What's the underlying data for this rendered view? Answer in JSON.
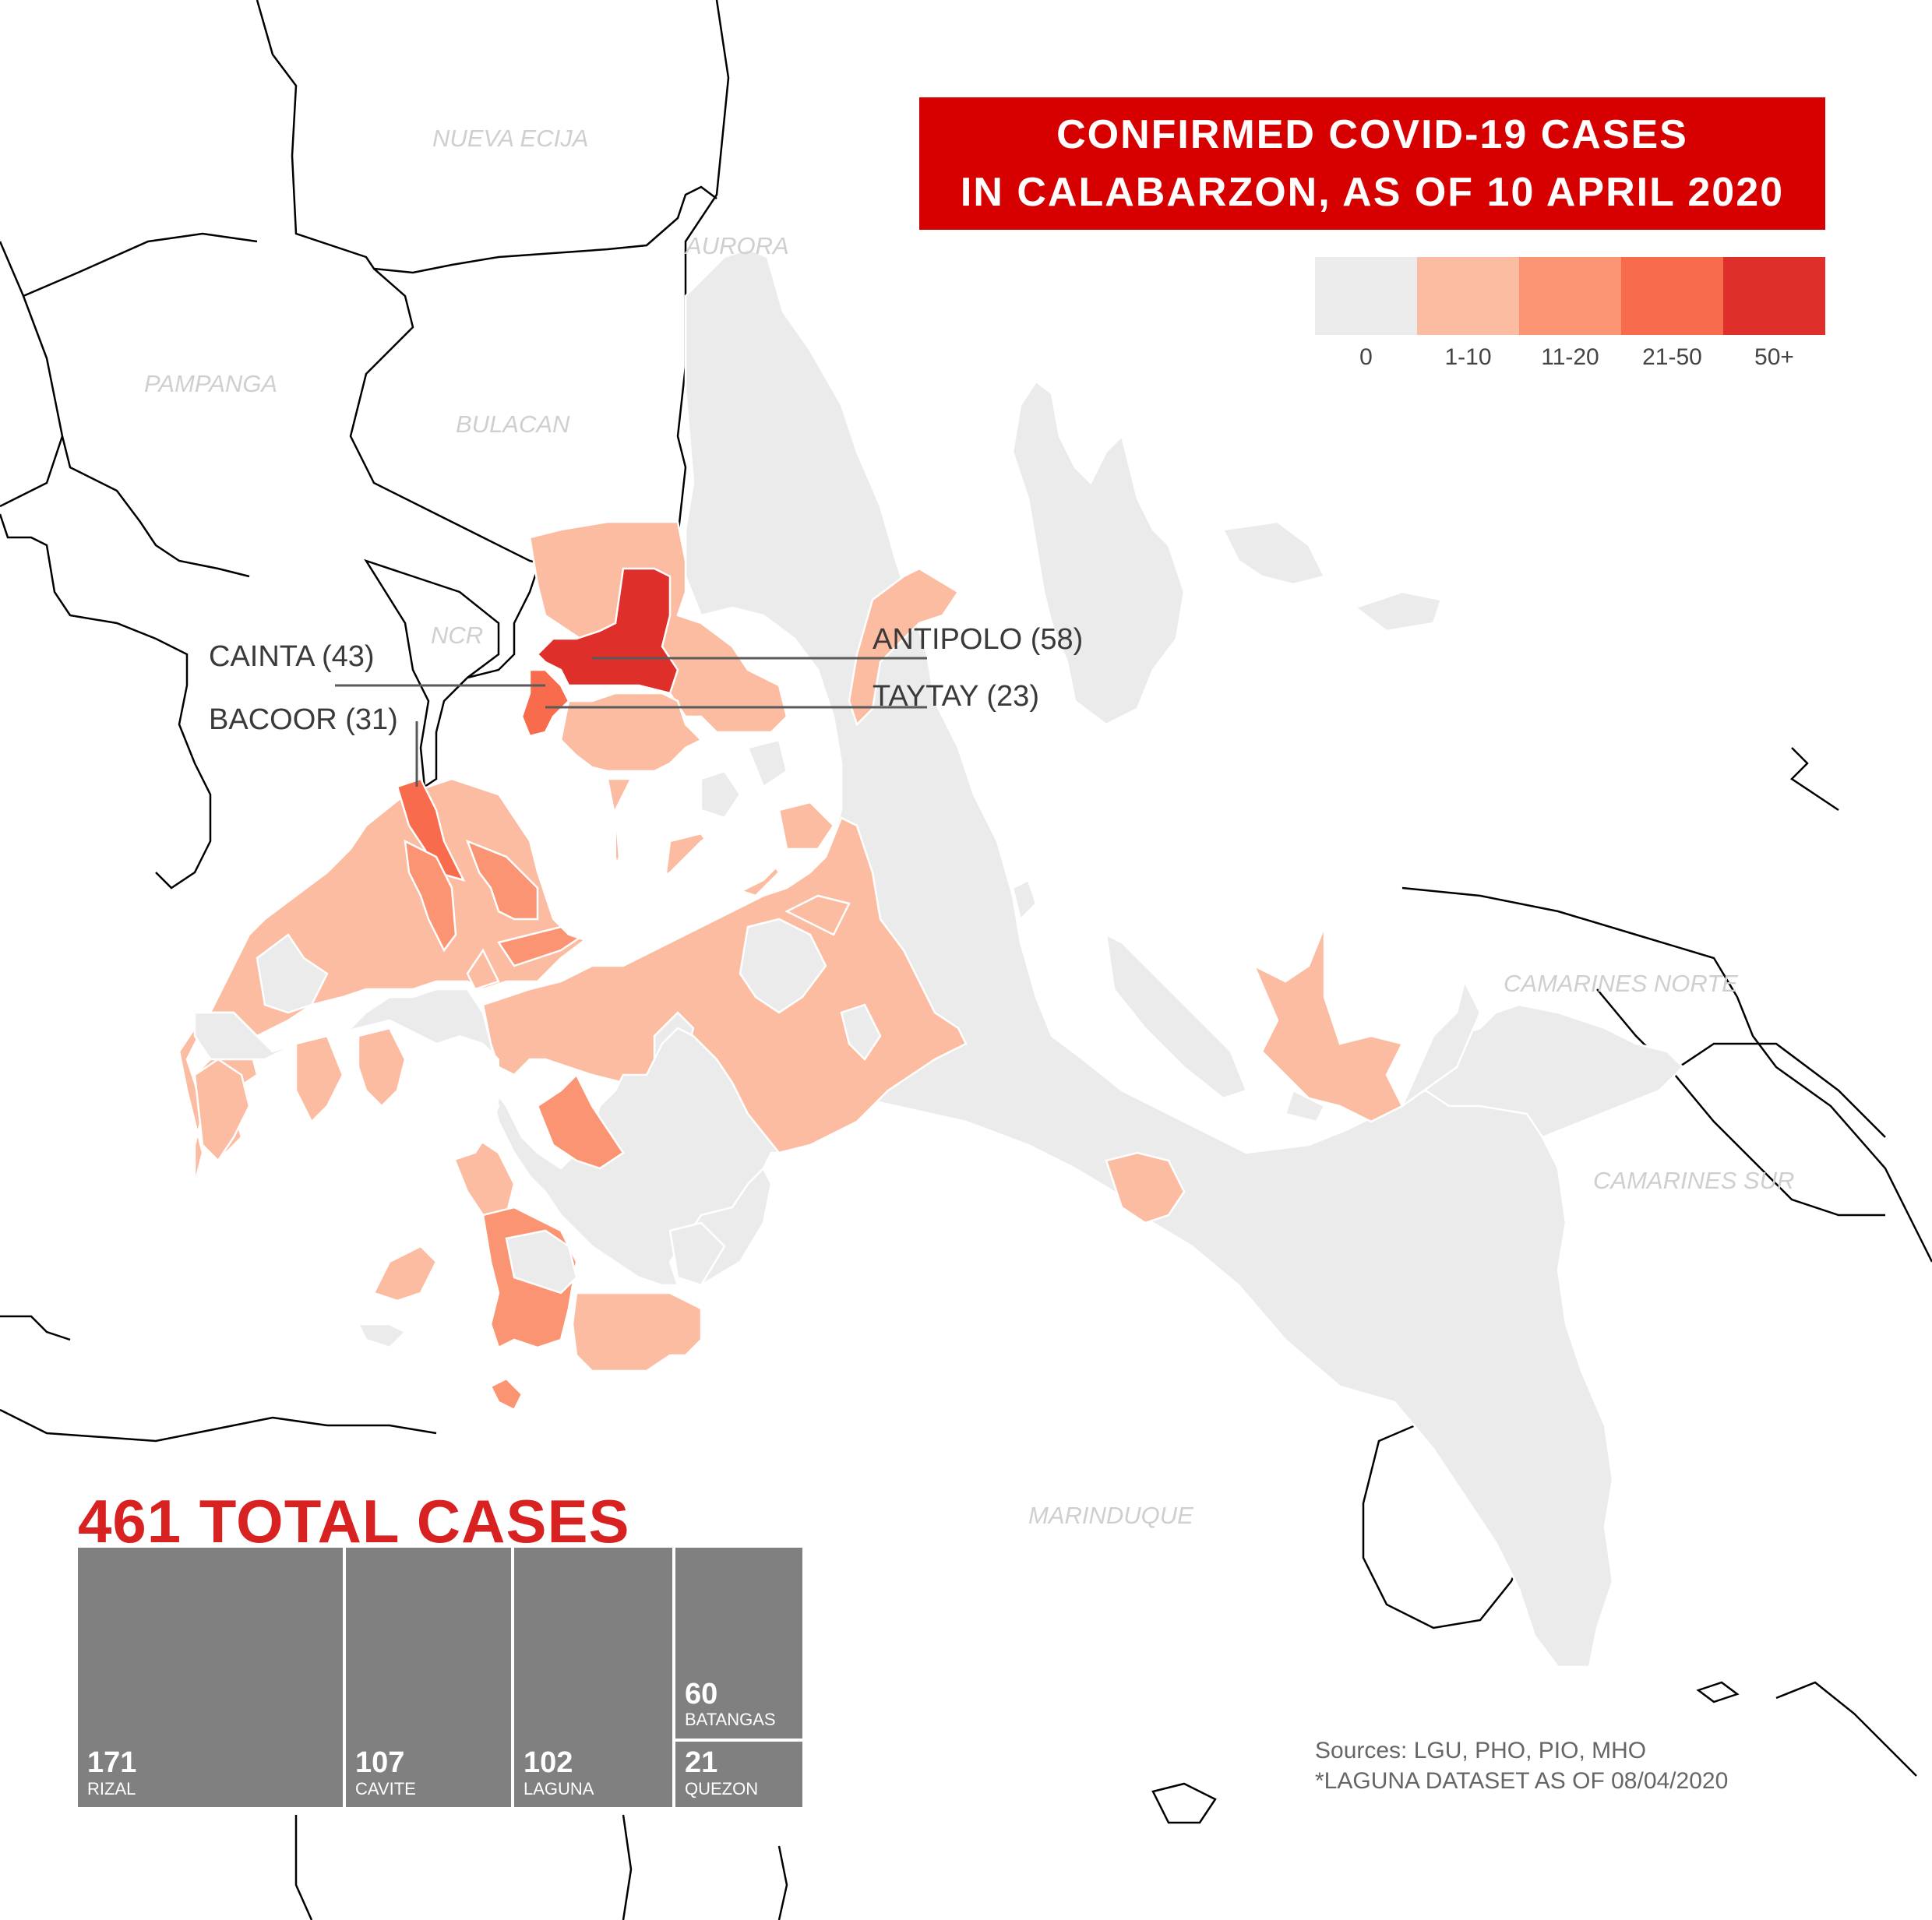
{
  "title": {
    "line1": "CONFIRMED COVID-19 CASES",
    "line2": "IN CALABARZON, AS OF 10 APRIL 2020"
  },
  "legend": [
    {
      "label": "0",
      "color": "#ebebeb"
    },
    {
      "label": "1-10",
      "color": "#fbbca1"
    },
    {
      "label": "11-20",
      "color": "#fb9473"
    },
    {
      "label": "21-50",
      "color": "#f86b4d"
    },
    {
      "label": "50+",
      "color": "#de2f2b"
    }
  ],
  "province_labels": {
    "nueva_ecija": "NUEVA ECIJA",
    "aurora": "AURORA",
    "pampanga": "PAMPANGA",
    "bulacan": "BULACAN",
    "ncr": "NCR",
    "camarines_norte": "CAMARINES NORTE",
    "camarines_sur": "CAMARINES SUR",
    "marinduque": "MARINDUQUE"
  },
  "callouts": {
    "cainta": "CAINTA (43)",
    "bacoor": "BACOOR (31)",
    "antipolo": "ANTIPOLO (58)",
    "taytay": "TAYTAY (23)"
  },
  "total": "461 TOTAL CASES",
  "provinces": [
    {
      "name": "RIZAL",
      "cases": "171"
    },
    {
      "name": "CAVITE",
      "cases": "107"
    },
    {
      "name": "LAGUNA",
      "cases": "102"
    },
    {
      "name": "BATANGAS",
      "cases": "60"
    },
    {
      "name": "QUEZON",
      "cases": "21"
    }
  ],
  "sources": {
    "line1": "Sources: LGU, PHO, PIO, MHO",
    "line2": "*LAGUNA DATASET AS OF 08/04/2020"
  }
}
